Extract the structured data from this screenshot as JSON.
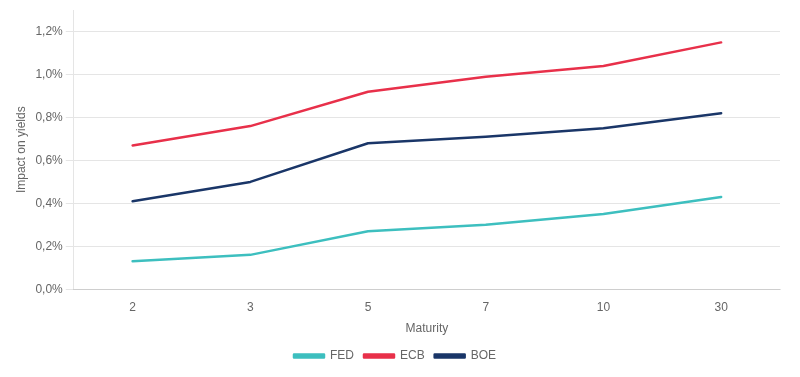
{
  "chart_data": {
    "type": "line",
    "xlabel": "Maturity",
    "ylabel": "Impact on yields",
    "categories": [
      "2",
      "3",
      "5",
      "7",
      "10",
      "30"
    ],
    "series": [
      {
        "name": "FED",
        "color": "#3DBFBF",
        "values": [
          0.0013,
          0.0016,
          0.0027,
          0.003,
          0.0035,
          0.0043
        ]
      },
      {
        "name": "ECB",
        "color": "#E8304A",
        "values": [
          0.0067,
          0.0076,
          0.0092,
          0.0099,
          0.0104,
          0.0115
        ]
      },
      {
        "name": "BOE",
        "color": "#1A3668",
        "values": [
          0.0041,
          0.005,
          0.0068,
          0.0071,
          0.0075,
          0.0082
        ]
      }
    ],
    "ylim": [
      0,
      0.013
    ],
    "yticks": [
      {
        "value": 0.0,
        "label": "0,0%"
      },
      {
        "value": 0.002,
        "label": "0,2%"
      },
      {
        "value": 0.004,
        "label": "0,4%"
      },
      {
        "value": 0.006,
        "label": "0,6%"
      },
      {
        "value": 0.008,
        "label": "0,8%"
      },
      {
        "value": 0.01,
        "label": "1,0%"
      },
      {
        "value": 0.012,
        "label": "1,2%"
      }
    ],
    "grid": "y",
    "legend": "bottom"
  }
}
